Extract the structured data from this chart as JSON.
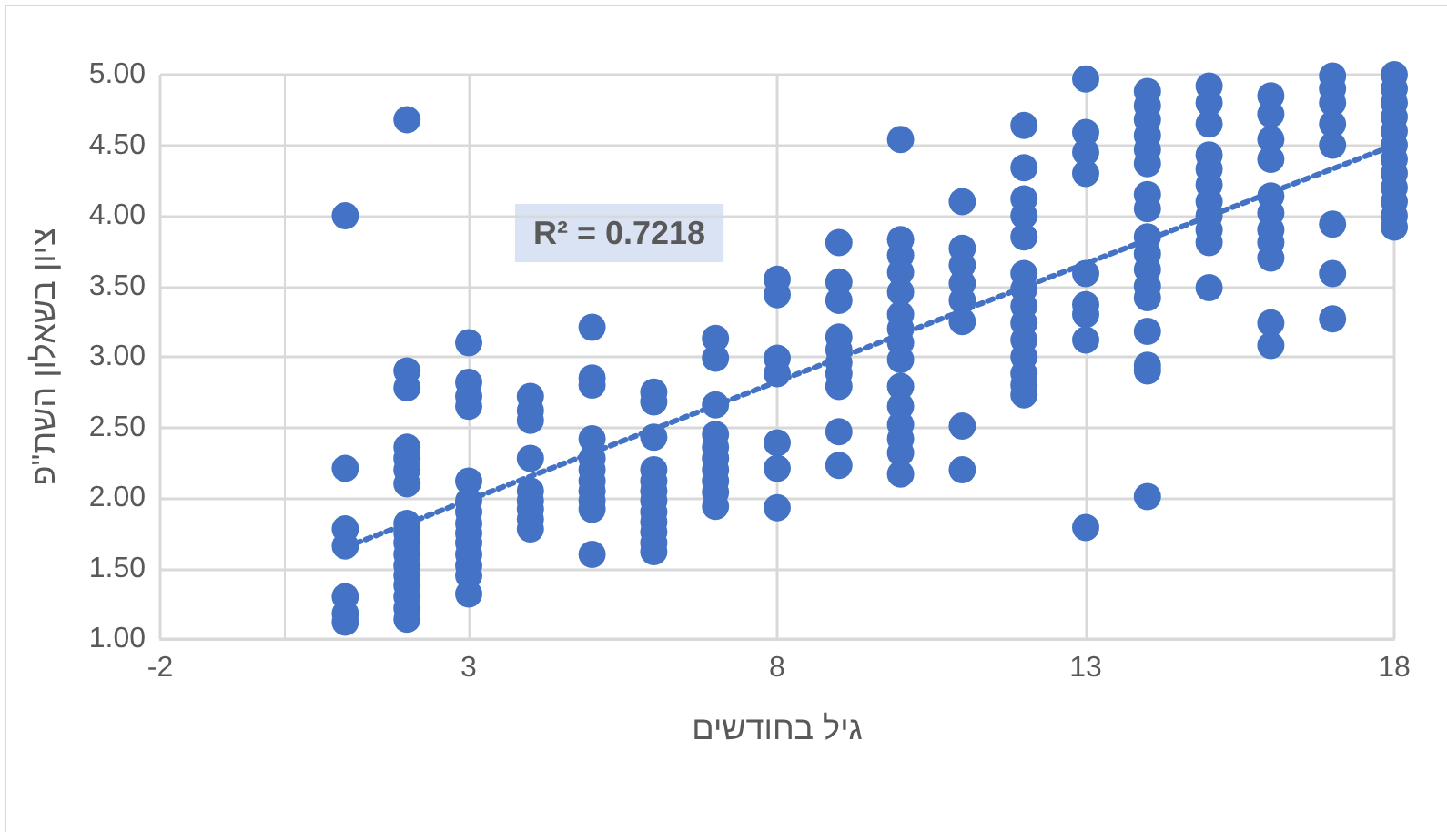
{
  "chart_data": {
    "type": "scatter",
    "xlabel": "גיל בחודשים",
    "ylabel": "ציון בשאלון השת\"פ",
    "annotations": [
      "R² = 0.7218"
    ],
    "xlim": [
      -2,
      18
    ],
    "xticks": [
      -2,
      3,
      8,
      13,
      18
    ],
    "ylim": [
      1,
      5
    ],
    "yticks": [
      {
        "value": 1,
        "label": "1.00"
      },
      {
        "value": 1.5,
        "label": "1.50"
      },
      {
        "value": 2,
        "label": "2.00"
      },
      {
        "value": 2.5,
        "label": "2.50"
      },
      {
        "value": 3,
        "label": "3.00"
      },
      {
        "value": 3.5,
        "label": "3.50"
      },
      {
        "value": 4,
        "label": "4.00"
      },
      {
        "value": 4.5,
        "label": "4.50"
      },
      {
        "value": 5,
        "label": "5.00"
      }
    ],
    "grid": true,
    "series": [
      {
        "color": "#4472c4",
        "marker": "circle",
        "x": [
          1,
          1,
          1,
          1,
          1,
          1,
          1,
          2,
          2,
          2,
          2,
          2,
          2,
          2,
          2,
          2,
          2,
          2,
          2,
          2,
          2,
          2,
          2,
          2,
          3,
          3,
          3,
          3,
          3,
          3,
          3,
          3,
          3,
          3,
          3,
          3,
          3,
          3,
          4,
          4,
          4,
          4,
          4,
          4,
          4,
          4,
          4,
          5,
          5,
          5,
          5,
          5,
          5,
          5,
          5,
          5,
          5,
          5,
          6,
          6,
          6,
          6,
          6,
          6,
          6,
          6,
          6,
          6,
          6,
          6,
          7,
          7,
          7,
          7,
          7,
          7,
          7,
          7,
          7,
          7,
          8,
          8,
          8,
          8,
          8,
          8,
          8,
          9,
          9,
          9,
          9,
          9,
          9,
          9,
          9,
          9,
          9,
          10,
          10,
          10,
          10,
          10,
          10,
          10,
          10,
          10,
          10,
          10,
          10,
          10,
          10,
          10,
          11,
          11,
          11,
          11,
          11,
          11,
          11,
          11,
          12,
          12,
          12,
          12,
          12,
          12,
          12,
          12,
          12,
          12,
          12,
          12,
          12,
          12,
          13,
          13,
          13,
          13,
          13,
          13,
          13,
          13,
          13,
          14,
          14,
          14,
          14,
          14,
          14,
          14,
          14,
          14,
          14,
          14,
          14,
          14,
          14,
          14,
          14,
          14,
          15,
          15,
          15,
          15,
          15,
          15,
          15,
          15,
          15,
          15,
          15,
          16,
          16,
          16,
          16,
          16,
          16,
          16,
          16,
          16,
          16,
          16,
          17,
          17,
          17,
          17,
          17,
          17,
          17,
          17,
          18,
          18,
          18,
          18,
          18,
          18,
          18,
          18,
          18,
          18,
          18,
          18
        ],
        "values": [
          4.0,
          2.21,
          1.78,
          1.66,
          1.3,
          1.18,
          1.12,
          4.68,
          2.9,
          2.78,
          2.36,
          2.28,
          2.2,
          2.1,
          1.82,
          1.75,
          1.68,
          1.6,
          1.52,
          1.45,
          1.38,
          1.3,
          1.22,
          1.14,
          3.1,
          2.82,
          2.72,
          2.65,
          2.12,
          1.98,
          1.9,
          1.82,
          1.75,
          1.68,
          1.6,
          1.52,
          1.45,
          1.32,
          2.72,
          2.62,
          2.55,
          2.28,
          2.05,
          1.98,
          1.92,
          1.85,
          1.78,
          3.21,
          2.85,
          2.8,
          2.42,
          2.28,
          2.2,
          2.12,
          2.05,
          1.98,
          1.92,
          1.6,
          2.75,
          2.68,
          2.43,
          2.2,
          2.12,
          2.05,
          1.98,
          1.9,
          1.83,
          1.76,
          1.68,
          1.62,
          3.13,
          2.99,
          2.66,
          2.45,
          2.36,
          2.28,
          2.2,
          2.12,
          2.04,
          1.94,
          3.55,
          3.44,
          2.99,
          2.88,
          2.39,
          2.21,
          1.93,
          3.81,
          3.53,
          3.4,
          3.14,
          3.05,
          2.96,
          2.88,
          2.79,
          2.47,
          2.23,
          4.54,
          3.83,
          3.72,
          3.6,
          3.46,
          3.3,
          3.2,
          3.1,
          2.98,
          2.79,
          2.65,
          2.52,
          2.42,
          2.32,
          2.17,
          4.1,
          3.77,
          3.65,
          3.52,
          3.4,
          3.25,
          2.51,
          2.2,
          4.64,
          4.34,
          4.12,
          4.0,
          3.85,
          3.59,
          3.48,
          3.36,
          3.24,
          3.12,
          3.0,
          2.88,
          2.8,
          2.73,
          4.97,
          4.59,
          4.45,
          4.3,
          3.59,
          3.37,
          3.3,
          3.12,
          1.79,
          4.88,
          4.78,
          4.68,
          4.57,
          4.47,
          4.37,
          4.15,
          4.05,
          3.85,
          3.73,
          3.62,
          3.5,
          3.42,
          3.18,
          2.94,
          2.9,
          2.01,
          4.92,
          4.8,
          4.65,
          4.43,
          4.33,
          4.22,
          4.1,
          4.0,
          3.9,
          3.81,
          3.49,
          4.85,
          4.72,
          4.54,
          4.4,
          4.14,
          4.02,
          3.9,
          3.81,
          3.7,
          3.24,
          3.08,
          4.99,
          4.9,
          4.8,
          4.65,
          4.5,
          3.94,
          3.59,
          3.27,
          5.0,
          4.9,
          4.8,
          4.7,
          4.6,
          4.5,
          4.4,
          4.3,
          4.2,
          4.1,
          4.0,
          3.92
        ]
      },
      {
        "type": "line",
        "color": "#4472c4",
        "line_style": "dotted",
        "x": [
          1,
          18
        ],
        "values": [
          1.65,
          4.5
        ]
      }
    ]
  }
}
